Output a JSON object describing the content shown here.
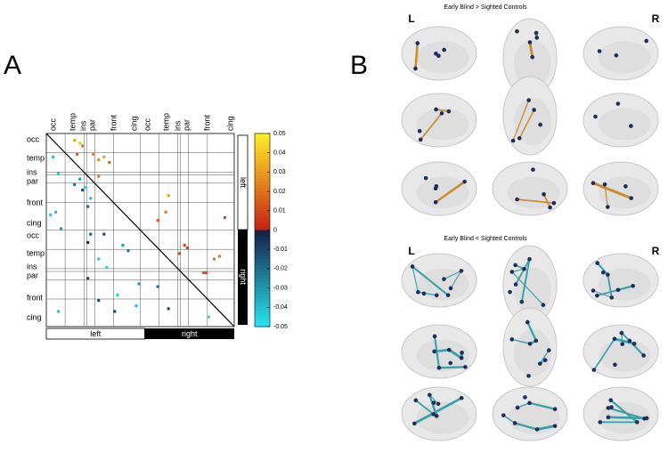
{
  "panel_a": {
    "label": "A",
    "row_labels": [
      "occ",
      "temp",
      "ins",
      "par",
      "front",
      "cing",
      "occ",
      "temp",
      "ins",
      "par",
      "front",
      "cing"
    ],
    "col_labels": [
      "occ",
      "temp",
      "ins",
      "par",
      "front",
      "cing",
      "occ",
      "temp",
      "ins",
      "par",
      "front",
      "cing"
    ],
    "bottom_bar": [
      "left",
      "right"
    ],
    "side_bar": [
      "left",
      "right"
    ],
    "colorbar_ticks": [
      "0.05",
      "0.04",
      "0.03",
      "0.02",
      "0.01",
      "0",
      "-0.01",
      "-0.02",
      "-0.03",
      "-0.04",
      "-0.05"
    ],
    "cells": [
      {
        "row": 2,
        "col": 10,
        "value": 0.03
      },
      {
        "row": 3,
        "col": 12,
        "value": 0.04
      },
      {
        "row": 4,
        "col": 13,
        "value": 0.02
      },
      {
        "row": 7,
        "col": 11,
        "value": 0.01
      },
      {
        "row": 7,
        "col": 17,
        "value": 0.02
      },
      {
        "row": 8,
        "col": 21,
        "value": 0.03
      },
      {
        "row": 10,
        "col": 23,
        "value": 0.015
      },
      {
        "row": 9,
        "col": 19,
        "value": 0.025
      },
      {
        "row": 15,
        "col": 19,
        "value": 0.02
      },
      {
        "row": 22,
        "col": 45,
        "value": 0.03
      },
      {
        "row": 28,
        "col": 44,
        "value": 0.02
      },
      {
        "row": 31,
        "col": 41,
        "value": 0.015
      },
      {
        "row": 30,
        "col": 66,
        "value": 0.01
      },
      {
        "row": 43,
        "col": 49,
        "value": 0.01
      },
      {
        "row": 40,
        "col": 51,
        "value": 0.01
      },
      {
        "row": 41,
        "col": 52,
        "value": 0.008
      },
      {
        "row": 50,
        "col": 58,
        "value": 0.015
      },
      {
        "row": 50,
        "col": 59,
        "value": 0.01
      },
      {
        "row": 45,
        "col": 62,
        "value": 0.02
      },
      {
        "row": 44,
        "col": 64,
        "value": 0.02
      },
      {
        "row": 8,
        "col": 2,
        "value": -0.04
      },
      {
        "row": 14,
        "col": 4,
        "value": -0.04
      },
      {
        "row": 16,
        "col": 12,
        "value": -0.03
      },
      {
        "row": 18,
        "col": 10,
        "value": -0.02
      },
      {
        "row": 19,
        "col": 14,
        "value": -0.045
      },
      {
        "row": 20,
        "col": 13,
        "value": -0.01
      },
      {
        "row": 23,
        "col": 16,
        "value": -0.04
      },
      {
        "row": 26,
        "col": 15,
        "value": -0.02
      },
      {
        "row": 28,
        "col": 3,
        "value": -0.04
      },
      {
        "row": 29,
        "col": 1,
        "value": -0.045
      },
      {
        "row": 34,
        "col": 5,
        "value": -0.03
      },
      {
        "row": 36,
        "col": 16,
        "value": -0.015
      },
      {
        "row": 36,
        "col": 21,
        "value": -0.01
      },
      {
        "row": 39,
        "col": 15,
        "value": -0.005
      },
      {
        "row": 40,
        "col": 28,
        "value": -0.03
      },
      {
        "row": 42,
        "col": 30,
        "value": -0.02
      },
      {
        "row": 45,
        "col": 19,
        "value": -0.04
      },
      {
        "row": 48,
        "col": 22,
        "value": -0.045
      },
      {
        "row": 52,
        "col": 15,
        "value": -0.01
      },
      {
        "row": 54,
        "col": 34,
        "value": -0.03
      },
      {
        "row": 55,
        "col": 41,
        "value": -0.02
      },
      {
        "row": 58,
        "col": 26,
        "value": -0.04
      },
      {
        "row": 60,
        "col": 19,
        "value": -0.01
      },
      {
        "row": 62,
        "col": 33,
        "value": -0.035
      },
      {
        "row": 63,
        "col": 45,
        "value": -0.01
      },
      {
        "row": 64,
        "col": 4,
        "value": -0.04
      },
      {
        "row": 66,
        "col": 60,
        "value": -0.045
      },
      {
        "row": 64,
        "col": 25,
        "value": -0.01
      }
    ]
  },
  "panel_b": {
    "label": "B",
    "top": {
      "title": "Early Blind > Sighted Controls",
      "left": "L",
      "right": "R"
    },
    "bottom": {
      "title": "Early Blind < Sighted Controls",
      "left": "L",
      "right": "R"
    }
  }
}
